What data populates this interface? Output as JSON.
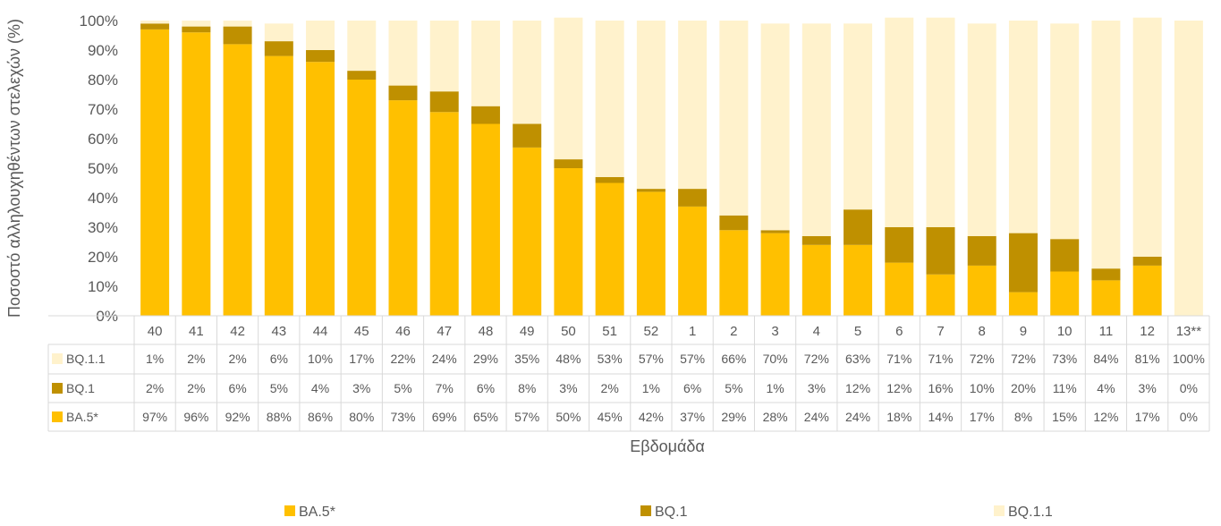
{
  "chart_data": {
    "type": "bar",
    "stacked": true,
    "percent_stacked": true,
    "categories": [
      "40",
      "41",
      "42",
      "43",
      "44",
      "45",
      "46",
      "47",
      "48",
      "49",
      "50",
      "51",
      "52",
      "1",
      "2",
      "3",
      "4",
      "5",
      "6",
      "7",
      "8",
      "9",
      "10",
      "11",
      "12",
      "13**"
    ],
    "series": [
      {
        "name": "BA.5*",
        "color": "#FFC000",
        "values": [
          97,
          96,
          92,
          88,
          86,
          80,
          73,
          69,
          65,
          57,
          50,
          45,
          42,
          37,
          29,
          28,
          24,
          24,
          18,
          14,
          17,
          8,
          15,
          12,
          17,
          0
        ]
      },
      {
        "name": "BQ.1",
        "color": "#BF9000",
        "values": [
          2,
          2,
          6,
          5,
          4,
          3,
          5,
          7,
          6,
          8,
          3,
          2,
          1,
          6,
          5,
          1,
          3,
          12,
          12,
          16,
          10,
          20,
          11,
          4,
          3,
          0
        ]
      },
      {
        "name": "BQ.1.1",
        "color": "#FFF2CC",
        "values": [
          1,
          2,
          2,
          6,
          10,
          17,
          22,
          24,
          29,
          35,
          48,
          53,
          57,
          57,
          66,
          70,
          72,
          63,
          71,
          71,
          72,
          72,
          73,
          84,
          81,
          100
        ]
      }
    ],
    "table_series_order": [
      "BQ.1.1",
      "BQ.1",
      "BA.5*"
    ],
    "xlabel": "Εβδομάδα",
    "ylabel": "Ποσοστό αλληλουχηθέντων στελεχών (%)",
    "ylim": [
      0,
      100
    ],
    "yticks": [
      "0%",
      "10%",
      "20%",
      "30%",
      "40%",
      "50%",
      "60%",
      "70%",
      "80%",
      "90%",
      "100%"
    ],
    "grid": false,
    "data_table": true,
    "legend_position": "bottom"
  }
}
